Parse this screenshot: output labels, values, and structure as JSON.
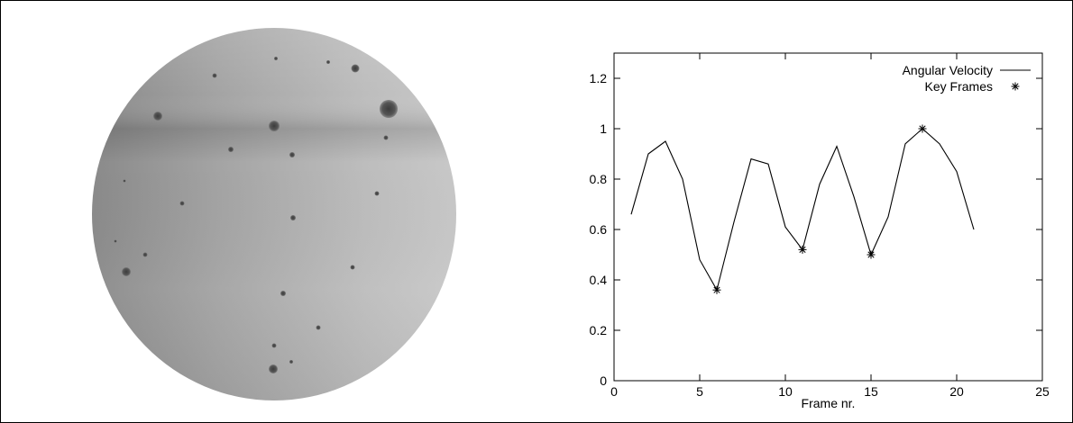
{
  "chart_data": {
    "type": "line",
    "xlabel": "Frame nr.",
    "ylabel": "",
    "xlim": [
      0,
      25
    ],
    "ylim": [
      0,
      1.3
    ],
    "x_ticks": [
      "0",
      "5",
      "10",
      "15",
      "20",
      "25"
    ],
    "y_ticks": [
      "0",
      "0.2",
      "0.4",
      "0.6",
      "0.8",
      "1",
      "1.2"
    ],
    "grid": false,
    "legend_position": "top-right",
    "series": [
      {
        "name": "Angular Velocity",
        "style": "line",
        "x": [
          1,
          2,
          3,
          4,
          5,
          6,
          7,
          8,
          9,
          10,
          11,
          12,
          13,
          14,
          15,
          16,
          17,
          18,
          19,
          20,
          21
        ],
        "y": [
          0.66,
          0.9,
          0.95,
          0.8,
          0.48,
          0.36,
          0.63,
          0.88,
          0.86,
          0.61,
          0.52,
          0.78,
          0.93,
          0.73,
          0.5,
          0.65,
          0.94,
          1.0,
          0.94,
          0.83,
          0.6
        ]
      },
      {
        "name": "Key Frames",
        "style": "marker",
        "marker": "*",
        "x": [
          6,
          11,
          15,
          18
        ],
        "y": [
          0.36,
          0.52,
          0.5,
          1.0
        ]
      }
    ]
  },
  "colors": {
    "line": "#000000",
    "sphere_light": "#c4c4c4",
    "sphere_dark": "#6e6e6e"
  }
}
